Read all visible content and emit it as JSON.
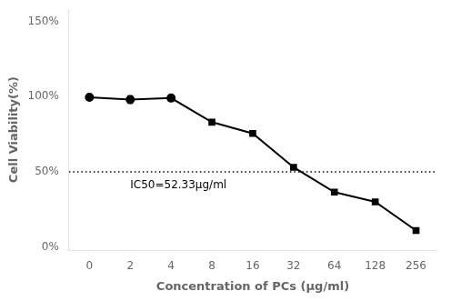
{
  "chart_data": {
    "type": "line",
    "xlabel": "Concentration of PCs (μg/ml)",
    "ylabel": "Cell Viability(%)",
    "categories": [
      "0",
      "2",
      "4",
      "8",
      "16",
      "32",
      "64",
      "128",
      "256"
    ],
    "values": [
      99.5,
      98.0,
      99.0,
      83.0,
      75.5,
      53.0,
      36.5,
      30.0,
      11.0
    ],
    "errors": [
      0.8,
      2.5,
      1.0,
      1.5,
      1.5,
      1.5,
      1.5,
      1.5,
      1.0
    ],
    "color": "#000000",
    "marker": [
      "circle",
      "circle",
      "circle",
      "square",
      "square",
      "square",
      "square",
      "square",
      "square"
    ],
    "ylim": [
      -2,
      158
    ],
    "yticks": [
      {
        "value": 0,
        "label": "0%"
      },
      {
        "value": 50,
        "label": "50%"
      },
      {
        "value": 100,
        "label": "100%"
      },
      {
        "value": 150,
        "label": "150%"
      }
    ],
    "grid": false,
    "reference_line": {
      "value": 50,
      "line_style": "dotted",
      "color": "#000000"
    },
    "annotations": [
      {
        "text": "IC50=52.33μg/ml",
        "x": "2",
        "y": 39
      }
    ]
  }
}
